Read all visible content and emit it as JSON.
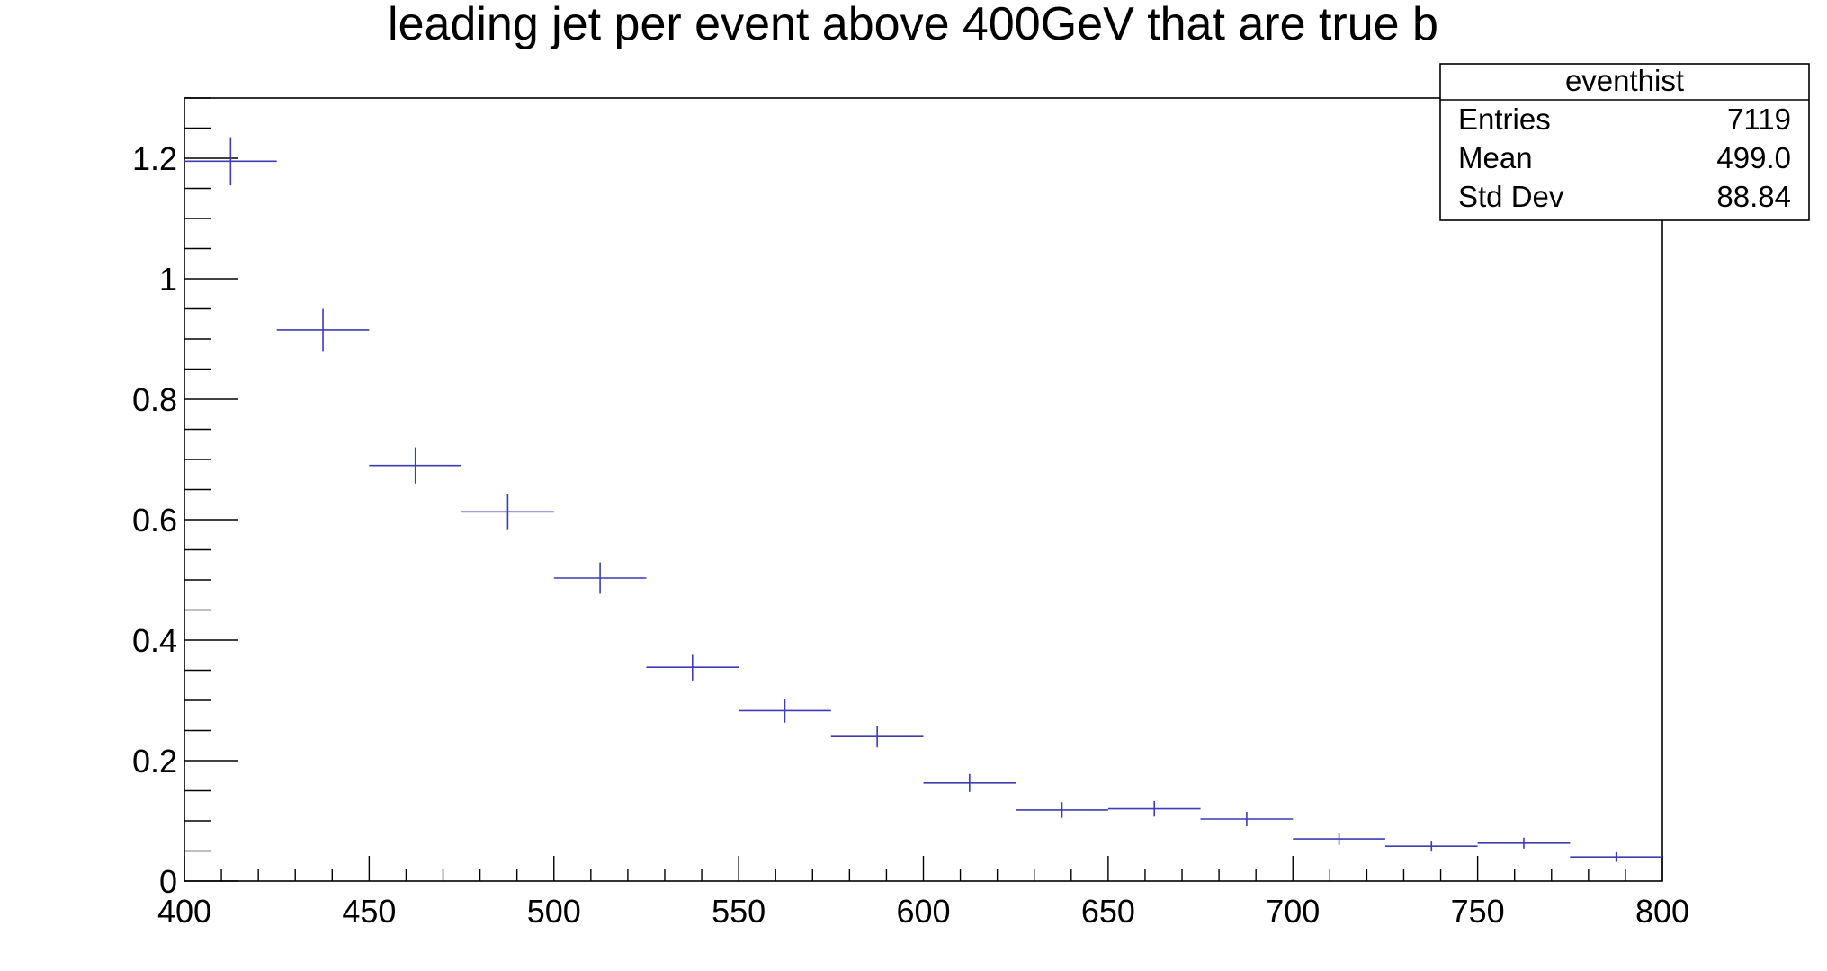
{
  "chart_data": {
    "type": "scatter",
    "title": "leading jet per event above 400GeV that are true b",
    "xlabel": "",
    "ylabel": "",
    "xlim": [
      400,
      800
    ],
    "ylim": [
      0,
      1.3
    ],
    "x_ticks": [
      "400",
      "450",
      "500",
      "550",
      "600",
      "650",
      "700",
      "750",
      "800"
    ],
    "y_ticks": [
      "0",
      "0.2",
      "0.4",
      "0.6",
      "0.8",
      "1",
      "1.2"
    ],
    "series_color": "#3c3cb4",
    "bins": [
      {
        "lo": 400,
        "hi": 425,
        "y": 1.195,
        "err": 0.04
      },
      {
        "lo": 425,
        "hi": 450,
        "y": 0.915,
        "err": 0.035
      },
      {
        "lo": 450,
        "hi": 475,
        "y": 0.69,
        "err": 0.03
      },
      {
        "lo": 475,
        "hi": 500,
        "y": 0.613,
        "err": 0.029
      },
      {
        "lo": 500,
        "hi": 525,
        "y": 0.503,
        "err": 0.026
      },
      {
        "lo": 525,
        "hi": 550,
        "y": 0.355,
        "err": 0.022
      },
      {
        "lo": 550,
        "hi": 575,
        "y": 0.283,
        "err": 0.02
      },
      {
        "lo": 575,
        "hi": 600,
        "y": 0.24,
        "err": 0.018
      },
      {
        "lo": 600,
        "hi": 625,
        "y": 0.163,
        "err": 0.015
      },
      {
        "lo": 625,
        "hi": 650,
        "y": 0.118,
        "err": 0.013
      },
      {
        "lo": 650,
        "hi": 675,
        "y": 0.12,
        "err": 0.013
      },
      {
        "lo": 675,
        "hi": 700,
        "y": 0.103,
        "err": 0.012
      },
      {
        "lo": 700,
        "hi": 725,
        "y": 0.07,
        "err": 0.01
      },
      {
        "lo": 725,
        "hi": 750,
        "y": 0.058,
        "err": 0.009
      },
      {
        "lo": 750,
        "hi": 775,
        "y": 0.063,
        "err": 0.009
      },
      {
        "lo": 775,
        "hi": 800,
        "y": 0.04,
        "err": 0.008
      }
    ],
    "stats": {
      "name": "eventhist",
      "rows": [
        {
          "label": "Entries",
          "value": "7119"
        },
        {
          "label": "Mean",
          "value": "499.0"
        },
        {
          "label": "Std Dev",
          "value": "88.84"
        }
      ]
    }
  }
}
